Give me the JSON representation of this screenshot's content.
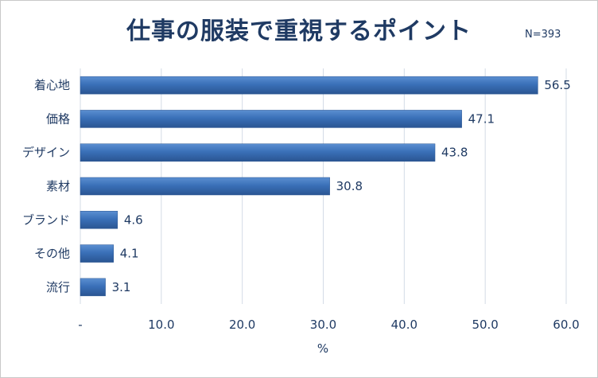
{
  "chart_data": {
    "type": "bar",
    "orientation": "horizontal",
    "title": "仕事の服装で重視するポイント",
    "annotation": "N=393",
    "categories": [
      "着心地",
      "価格",
      "デザイン",
      "素材",
      "ブランド",
      "その他",
      "流行"
    ],
    "values": [
      56.5,
      47.1,
      43.8,
      30.8,
      4.6,
      4.1,
      3.1
    ],
    "value_labels": [
      "56.5",
      "47.1",
      "43.8",
      "30.8",
      "4.6",
      "4.1",
      "3.1"
    ],
    "xlabel": "%",
    "ylabel": "",
    "xlim": [
      0,
      60
    ],
    "xticks": [
      0,
      10,
      20,
      30,
      40,
      50,
      60
    ],
    "xtick_labels": [
      "-",
      "10.0",
      "20.0",
      "30.0",
      "40.0",
      "50.0",
      "60.0"
    ],
    "grid": true,
    "legend": "none",
    "bar_color": "#3a70b8"
  }
}
